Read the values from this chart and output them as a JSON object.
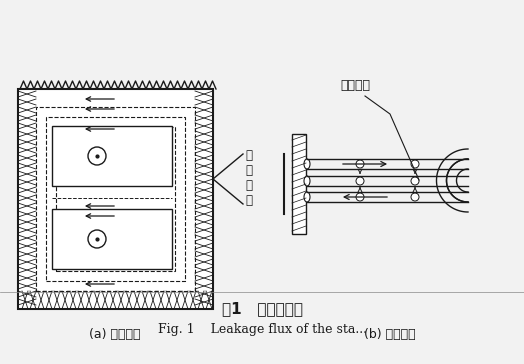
{
  "background_color": "#f2f2f2",
  "title_cn": "图1   定子漏磁通",
  "title_en": "Fig. 1    Leakage flux of the sta...",
  "label_a": "(a) 槽部漏磁",
  "label_b": "(b) 端部漏磁",
  "annotation_slot": "槽\n部\n漏\n磁",
  "annotation_end": "端部漏磁",
  "text_color": "#1a1a1a",
  "line_color": "#1a1a1a"
}
